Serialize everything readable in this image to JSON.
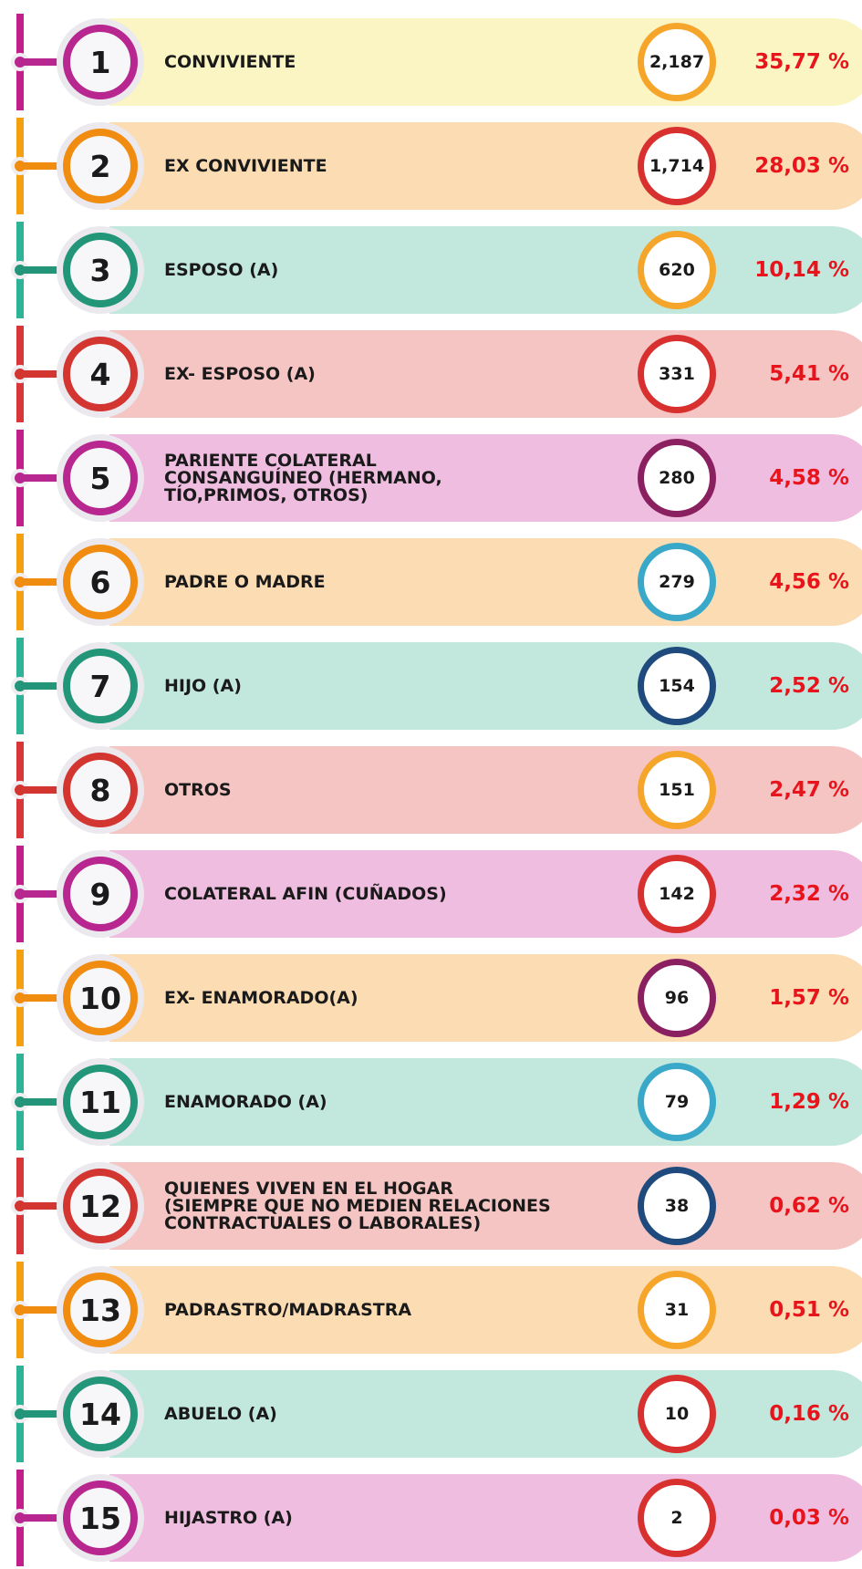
{
  "rows": [
    {
      "rank": "1",
      "label": "CONVIVIENTE",
      "count": "2,187",
      "percent": "35,77 %"
    },
    {
      "rank": "2",
      "label": "EX CONVIVIENTE",
      "count": "1,714",
      "percent": "28,03 %"
    },
    {
      "rank": "3",
      "label": "ESPOSO (A)",
      "count": "620",
      "percent": "10,14 %"
    },
    {
      "rank": "4",
      "label": "EX- ESPOSO (A)",
      "count": "331",
      "percent": "5,41 %"
    },
    {
      "rank": "5",
      "label": "PARIENTE COLATERAL\nCONSANGUÍNEO (HERMANO,\nTÍO,PRIMOS, OTROS)",
      "count": "280",
      "percent": "4,58 %"
    },
    {
      "rank": "6",
      "label": "PADRE O MADRE",
      "count": "279",
      "percent": "4,56 %"
    },
    {
      "rank": "7",
      "label": "HIJO (A)",
      "count": "154",
      "percent": "2,52 %"
    },
    {
      "rank": "8",
      "label": "OTROS",
      "count": "151",
      "percent": "2,47 %"
    },
    {
      "rank": "9",
      "label": "COLATERAL AFIN (CUÑADOS)",
      "count": "142",
      "percent": "2,32 %"
    },
    {
      "rank": "10",
      "label": "EX- ENAMORADO(A)",
      "count": "96",
      "percent": "1,57 %"
    },
    {
      "rank": "11",
      "label": "ENAMORADO (A)",
      "count": "79",
      "percent": "1,29 %"
    },
    {
      "rank": "12",
      "label": "QUIENES VIVEN EN EL HOGAR\n(SIEMPRE QUE NO MEDIEN RELACIONES\nCONTRACTUALES O LABORALES)",
      "count": "38",
      "percent": "0,62 %"
    },
    {
      "rank": "13",
      "label": "PADRASTRO/MADRASTRA",
      "count": "31",
      "percent": "0,51 %"
    },
    {
      "rank": "14",
      "label": "ABUELO (A)",
      "count": "10",
      "percent": "0,16 %"
    },
    {
      "rank": "15",
      "label": "HIJASTRO (A)",
      "count": "2",
      "percent": "0,03 %"
    }
  ]
}
